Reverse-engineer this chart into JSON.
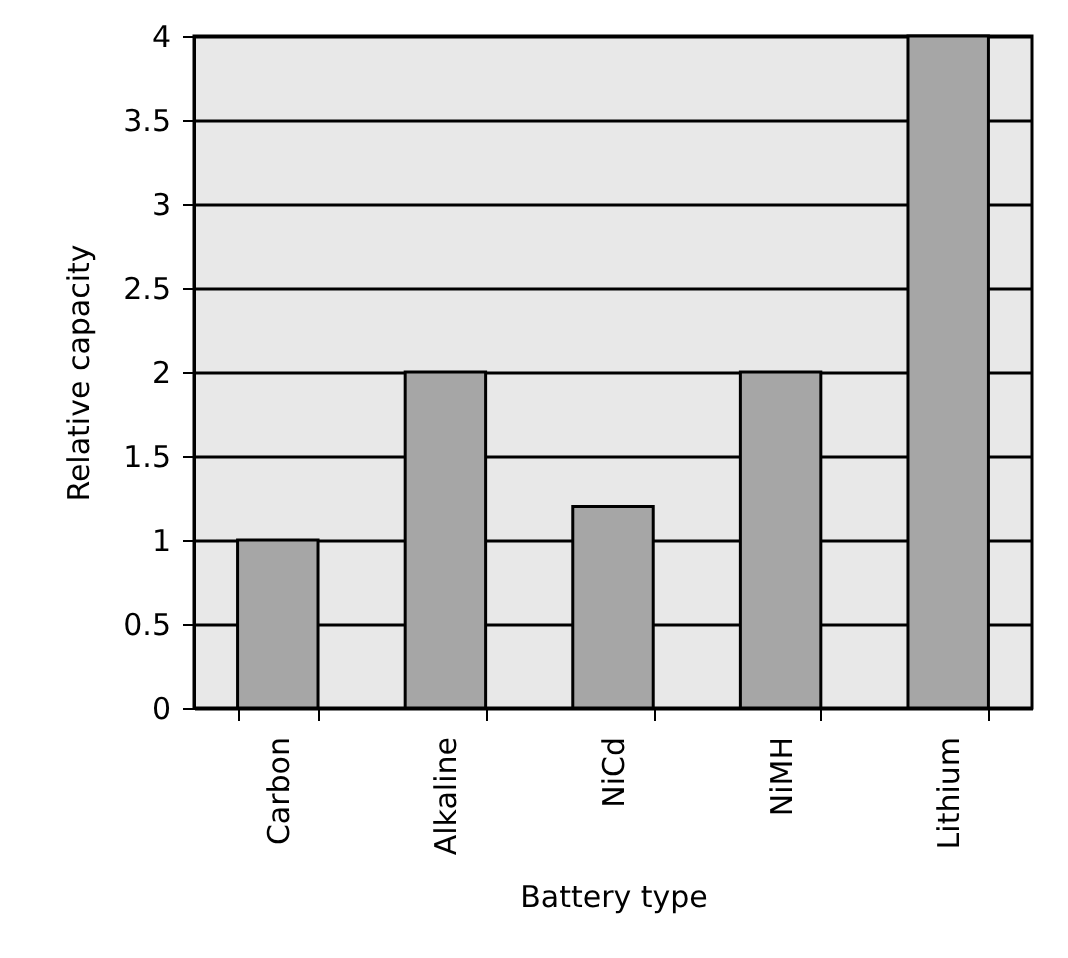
{
  "chart_data": {
    "type": "bar",
    "xlabel": "Battery type",
    "ylabel": "Relative capacity",
    "categories": [
      "Carbon",
      "Alkaline",
      "NiCd",
      "NiMH",
      "Lithium"
    ],
    "values": [
      1,
      2,
      1.2,
      2,
      4
    ],
    "color": "#a6a6a6",
    "ylim": [
      0,
      4
    ],
    "yticks": [
      0,
      0.5,
      1,
      1.5,
      2,
      2.5,
      3,
      3.5,
      4
    ],
    "grid": "y"
  }
}
